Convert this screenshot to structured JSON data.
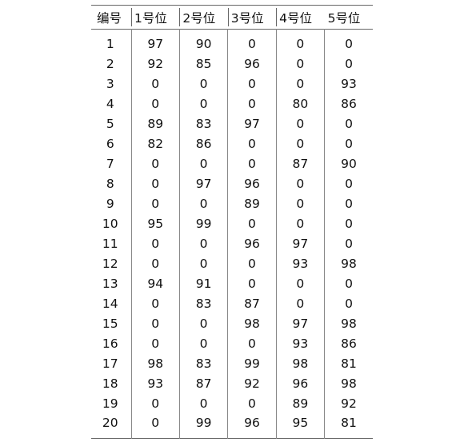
{
  "table": {
    "headers": [
      "编号",
      "1号位",
      "2号位",
      "3号位",
      "4号位",
      "5号位"
    ],
    "rows": [
      [
        "1",
        "97",
        "90",
        "0",
        "0",
        "0"
      ],
      [
        "2",
        "92",
        "85",
        "96",
        "0",
        "0"
      ],
      [
        "3",
        "0",
        "0",
        "0",
        "0",
        "93"
      ],
      [
        "4",
        "0",
        "0",
        "0",
        "80",
        "86"
      ],
      [
        "5",
        "89",
        "83",
        "97",
        "0",
        "0"
      ],
      [
        "6",
        "82",
        "86",
        "0",
        "0",
        "0"
      ],
      [
        "7",
        "0",
        "0",
        "0",
        "87",
        "90"
      ],
      [
        "8",
        "0",
        "97",
        "96",
        "0",
        "0"
      ],
      [
        "9",
        "0",
        "0",
        "89",
        "0",
        "0"
      ],
      [
        "10",
        "95",
        "99",
        "0",
        "0",
        "0"
      ],
      [
        "11",
        "0",
        "0",
        "96",
        "97",
        "0"
      ],
      [
        "12",
        "0",
        "0",
        "0",
        "93",
        "98"
      ],
      [
        "13",
        "94",
        "91",
        "0",
        "0",
        "0"
      ],
      [
        "14",
        "0",
        "83",
        "87",
        "0",
        "0"
      ],
      [
        "15",
        "0",
        "0",
        "98",
        "97",
        "98"
      ],
      [
        "16",
        "0",
        "0",
        "0",
        "93",
        "86"
      ],
      [
        "17",
        "98",
        "83",
        "99",
        "98",
        "81"
      ],
      [
        "18",
        "93",
        "87",
        "92",
        "96",
        "98"
      ],
      [
        "19",
        "0",
        "0",
        "0",
        "89",
        "92"
      ],
      [
        "20",
        "0",
        "99",
        "96",
        "95",
        "81"
      ]
    ]
  }
}
